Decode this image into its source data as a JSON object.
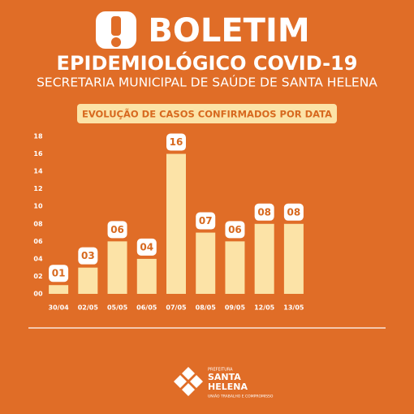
{
  "header": {
    "title": "BOLETIM",
    "subtitle": "EPIDEMIOLÓGICO COVID-19",
    "department": "SECRETARIA MUNICIPAL DE SAÚDE DE SANTA HELENA"
  },
  "chart_data": {
    "type": "bar",
    "title": "EVOLUÇÃO DE CASOS CONFIRMADOS POR DATA",
    "categories": [
      "30/04",
      "02/05",
      "05/05",
      "06/05",
      "07/05",
      "08/05",
      "09/05",
      "12/05",
      "13/05"
    ],
    "values": [
      1,
      3,
      6,
      4,
      16,
      7,
      6,
      8,
      8
    ],
    "value_labels": [
      "01",
      "03",
      "06",
      "04",
      "16",
      "07",
      "06",
      "08",
      "08"
    ],
    "color": "#fce3a7",
    "ylim": [
      0,
      18
    ],
    "yticks": [
      {
        "value": 0,
        "label": "00"
      },
      {
        "value": 2,
        "label": "02"
      },
      {
        "value": 4,
        "label": "04"
      },
      {
        "value": 6,
        "label": "06"
      },
      {
        "value": 8,
        "label": "08"
      },
      10,
      12,
      14,
      16,
      18
    ]
  },
  "footer": {
    "logo_line1": "PREFEITURA",
    "logo_line2": "SANTA",
    "logo_line3": "HELENA",
    "slogan": "UNIÃO TRABALHO E COMPROMISSO"
  }
}
